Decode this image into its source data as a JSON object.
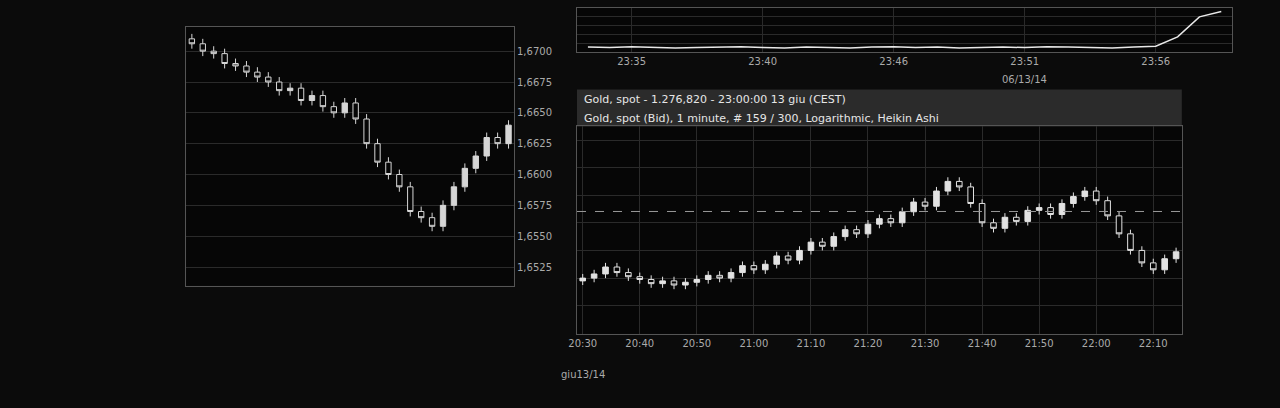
{
  "chart_data": [
    {
      "type": "candlestick",
      "categories": [
        null,
        null,
        null,
        null,
        null,
        null,
        null,
        null,
        null,
        null,
        null,
        null,
        null,
        null,
        null,
        null,
        null,
        null,
        null,
        null,
        null,
        null,
        null,
        null,
        null,
        null,
        null,
        null,
        null,
        null
      ],
      "open": [
        1.671,
        1.6706,
        1.67,
        1.6698,
        1.669,
        1.6688,
        1.6683,
        1.6679,
        1.6675,
        1.6668,
        1.667,
        1.666,
        1.6664,
        1.6655,
        1.665,
        1.6658,
        1.6645,
        1.6625,
        1.661,
        1.66,
        1.659,
        1.657,
        1.6565,
        1.6558,
        1.6575,
        1.659,
        1.6605,
        1.6615,
        1.663,
        1.6625
      ],
      "high": [
        1.6714,
        1.671,
        1.6704,
        1.6702,
        1.6694,
        1.6692,
        1.6687,
        1.6683,
        1.6679,
        1.6674,
        1.6674,
        1.6668,
        1.6668,
        1.6659,
        1.6662,
        1.6662,
        1.6649,
        1.6629,
        1.6614,
        1.6604,
        1.6594,
        1.6574,
        1.6569,
        1.6579,
        1.6594,
        1.6609,
        1.6619,
        1.6634,
        1.6634,
        1.6644
      ],
      "low": [
        1.6702,
        1.6696,
        1.6694,
        1.6686,
        1.6684,
        1.6679,
        1.6675,
        1.6671,
        1.6664,
        1.6664,
        1.6656,
        1.6656,
        1.6651,
        1.6646,
        1.6646,
        1.6641,
        1.6621,
        1.6606,
        1.6596,
        1.6586,
        1.6566,
        1.6561,
        1.6554,
        1.6554,
        1.6571,
        1.6586,
        1.6601,
        1.6611,
        1.6621,
        1.6621
      ],
      "close": [
        1.6706,
        1.67,
        1.6698,
        1.669,
        1.6688,
        1.6683,
        1.6679,
        1.6675,
        1.6668,
        1.667,
        1.666,
        1.6664,
        1.6655,
        1.665,
        1.6658,
        1.6645,
        1.6625,
        1.661,
        1.66,
        1.659,
        1.657,
        1.6565,
        1.6558,
        1.6575,
        1.659,
        1.6605,
        1.6615,
        1.663,
        1.6625,
        1.664
      ],
      "color": "#d6d6d6",
      "ylim": [
        1.651,
        1.672
      ],
      "yticks": [
        {
          "value": 1.6525,
          "label": "1,6525"
        },
        {
          "value": 1.655,
          "label": "1,6550"
        },
        {
          "value": 1.6575,
          "label": "1,6575"
        },
        {
          "value": 1.66,
          "label": "1,6600"
        },
        {
          "value": 1.6625,
          "label": "1,6625"
        },
        {
          "value": 1.665,
          "label": "1,6650"
        },
        {
          "value": 1.6675,
          "label": "1,6675"
        },
        {
          "value": 1.67,
          "label": "1,6700"
        }
      ],
      "grid": true,
      "tick_labels": "y"
    },
    {
      "type": "candlestick",
      "title": "Gold, spot - 1.276,820 - 23:00:00 13 giu (CEST)",
      "subtitle": "Gold, spot (Bid), 1 minute, # 159 / 300, Logarithmic, Heikin Ashi",
      "categories": [
        "20:30",
        null,
        null,
        null,
        null,
        "20:40",
        null,
        null,
        null,
        null,
        "20:50",
        null,
        null,
        null,
        null,
        "21:00",
        null,
        null,
        null,
        null,
        "21:10",
        null,
        null,
        null,
        null,
        "21:20",
        null,
        null,
        null,
        null,
        "21:30",
        null,
        null,
        null,
        null,
        "21:40",
        null,
        null,
        null,
        null,
        "21:50",
        null,
        null,
        null,
        null,
        "22:00",
        null,
        null,
        null,
        null,
        "22:10",
        null,
        null
      ],
      "open": [
        1271.8,
        1272.0,
        1272.3,
        1272.8,
        1272.4,
        1272.1,
        1271.9,
        1271.6,
        1271.8,
        1271.5,
        1271.7,
        1271.9,
        1272.2,
        1272.0,
        1272.4,
        1272.9,
        1272.6,
        1273.0,
        1273.6,
        1273.3,
        1274.0,
        1274.6,
        1274.3,
        1275.0,
        1275.5,
        1275.2,
        1275.9,
        1276.3,
        1276.0,
        1276.8,
        1277.5,
        1277.2,
        1278.3,
        1279.0,
        1278.6,
        1277.4,
        1276.0,
        1275.6,
        1276.4,
        1276.1,
        1276.9,
        1277.1,
        1276.6,
        1277.4,
        1277.9,
        1278.3,
        1277.6,
        1276.5,
        1275.2,
        1274.0,
        1273.1,
        1272.6,
        1273.4
      ],
      "high": [
        1272.3,
        1272.6,
        1273.1,
        1273.1,
        1272.7,
        1272.4,
        1272.2,
        1272.1,
        1272.1,
        1272.0,
        1272.2,
        1272.5,
        1272.5,
        1272.7,
        1273.2,
        1273.2,
        1273.3,
        1273.9,
        1273.9,
        1274.3,
        1274.9,
        1274.9,
        1275.3,
        1275.8,
        1275.8,
        1276.2,
        1276.6,
        1276.6,
        1277.1,
        1277.8,
        1277.8,
        1278.6,
        1279.3,
        1279.3,
        1278.9,
        1277.7,
        1276.3,
        1276.7,
        1276.7,
        1277.2,
        1277.4,
        1277.4,
        1277.7,
        1278.2,
        1278.6,
        1278.6,
        1277.9,
        1276.8,
        1275.5,
        1274.3,
        1273.4,
        1273.7,
        1274.2
      ],
      "low": [
        1271.5,
        1271.7,
        1272.0,
        1272.1,
        1271.8,
        1271.6,
        1271.3,
        1271.3,
        1271.2,
        1271.2,
        1271.4,
        1271.6,
        1271.7,
        1271.7,
        1272.1,
        1272.3,
        1272.3,
        1272.7,
        1273.0,
        1273.0,
        1273.7,
        1274.0,
        1274.0,
        1274.7,
        1274.9,
        1274.9,
        1275.6,
        1275.7,
        1275.7,
        1276.5,
        1276.9,
        1276.9,
        1278.0,
        1278.3,
        1277.1,
        1275.7,
        1275.3,
        1275.3,
        1275.8,
        1275.8,
        1276.6,
        1276.3,
        1276.3,
        1277.1,
        1277.6,
        1277.3,
        1276.2,
        1274.9,
        1273.7,
        1272.8,
        1272.3,
        1272.3,
        1273.1
      ],
      "close": [
        1272.0,
        1272.3,
        1272.8,
        1272.4,
        1272.1,
        1271.9,
        1271.6,
        1271.8,
        1271.5,
        1271.7,
        1271.9,
        1272.2,
        1272.0,
        1272.4,
        1272.9,
        1272.6,
        1273.0,
        1273.6,
        1273.3,
        1274.0,
        1274.6,
        1274.3,
        1275.0,
        1275.5,
        1275.2,
        1275.9,
        1276.3,
        1276.0,
        1276.8,
        1277.5,
        1277.2,
        1278.3,
        1279.0,
        1278.6,
        1277.4,
        1276.0,
        1275.6,
        1276.4,
        1276.1,
        1276.9,
        1277.1,
        1276.6,
        1277.4,
        1277.9,
        1278.3,
        1277.6,
        1276.5,
        1275.2,
        1274.0,
        1273.1,
        1272.6,
        1273.4,
        1273.9
      ],
      "color": "#e2e2e2",
      "ylim": [
        1268,
        1283
      ],
      "yticks": [
        1270,
        1272,
        1274,
        1276,
        1278,
        1280,
        1282
      ],
      "log": "y",
      "grid": true,
      "tick_labels": "x",
      "dashed_level": 1276.82,
      "date_label": "giu13/14"
    },
    {
      "type": "line",
      "categories": [
        null,
        null,
        "23:35",
        null,
        null,
        null,
        null,
        null,
        "23:40",
        null,
        null,
        null,
        null,
        null,
        "23:46",
        null,
        null,
        null,
        null,
        null,
        "23:51",
        null,
        null,
        null,
        null,
        null,
        "23:56",
        null,
        null,
        null
      ],
      "values": [
        1.2,
        1.1,
        1.3,
        1.2,
        1.0,
        1.1,
        1.2,
        1.3,
        1.1,
        1.0,
        1.2,
        1.1,
        1.0,
        1.2,
        1.3,
        1.1,
        1.2,
        1.0,
        1.1,
        1.2,
        1.1,
        1.3,
        1.2,
        1.1,
        1.0,
        1.2,
        1.4,
        3.5,
        8.0,
        9.2
      ],
      "color": "#e8e8e8",
      "ylim": [
        0,
        10
      ],
      "yticks": [
        0,
        2,
        4,
        6,
        8,
        10
      ],
      "grid": true,
      "tick_labels": "x",
      "date_label": "06/13/14"
    }
  ]
}
